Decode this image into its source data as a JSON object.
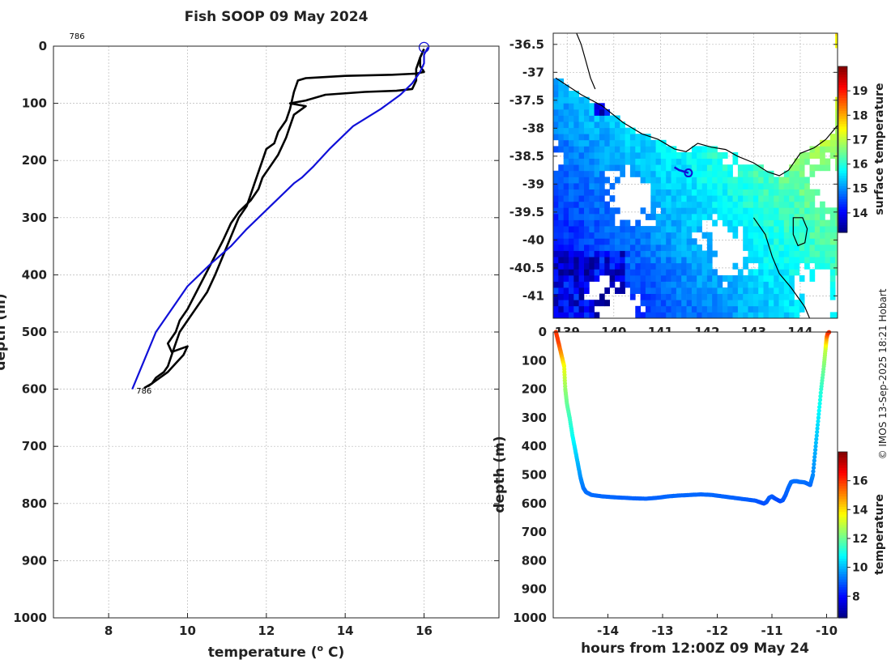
{
  "credit": "© IMOS 13-Sep-2025 18:21 Hobart",
  "colors": {
    "cast": "#000000",
    "climatology": "#1010d8",
    "land": "#000000"
  },
  "chart_data": [
    {
      "id": "profile",
      "type": "line",
      "title": "Fish SOOP 09 May 2024",
      "xlabel": "temperature (",
      "xlabel_sup": "o",
      "xlabel_end": " C)",
      "ylabel": "depth (m)",
      "xlim": [
        6.6,
        17.9
      ],
      "ylim": [
        0,
        1000
      ],
      "xticks": [
        8,
        10,
        12,
        14,
        16
      ],
      "yticks": [
        0,
        100,
        200,
        300,
        400,
        500,
        600,
        700,
        800,
        900,
        1000
      ],
      "annotations": [
        {
          "text": "786",
          "x": 7.0,
          "y": -20
        },
        {
          "text": "786",
          "x": 8.7,
          "y": 602
        }
      ],
      "start_marker": {
        "x": 16.0,
        "y": 2
      },
      "series": [
        {
          "name": "cast-down",
          "color": "#000000",
          "x": [
            16.0,
            15.9,
            15.9,
            16.0,
            15.8,
            15.2,
            14.0,
            13.0,
            12.8,
            12.7,
            12.6,
            12.5,
            12.3,
            12.2,
            12.0,
            11.9,
            11.8,
            11.7,
            11.6,
            11.5,
            11.3,
            11.0,
            10.7,
            10.5,
            10.2,
            10.0,
            9.8,
            9.7,
            9.6,
            9.5,
            9.4,
            9.3,
            9.2,
            9.1,
            9.0
          ],
          "y": [
            5,
            20,
            35,
            45,
            48,
            50,
            52,
            56,
            60,
            80,
            110,
            130,
            150,
            170,
            180,
            200,
            220,
            240,
            260,
            280,
            300,
            350,
            400,
            430,
            460,
            480,
            500,
            520,
            540,
            560,
            570,
            575,
            580,
            590,
            595
          ]
        },
        {
          "name": "cast-up",
          "color": "#000000",
          "x": [
            8.9,
            9.1,
            9.3,
            9.5,
            9.7,
            9.9,
            10.0,
            9.6,
            9.5,
            9.7,
            9.8,
            10.0,
            10.3,
            10.6,
            10.9,
            11.1,
            11.3,
            11.6,
            11.8,
            11.9,
            12.1,
            12.3,
            12.4,
            12.5,
            12.6,
            12.7,
            12.9,
            13.0,
            12.6,
            13.0,
            13.5,
            14.5,
            15.3,
            15.7,
            15.8,
            15.8,
            15.9,
            16.0
          ],
          "y": [
            598,
            590,
            580,
            570,
            555,
            540,
            525,
            535,
            520,
            500,
            480,
            460,
            420,
            380,
            340,
            310,
            290,
            270,
            250,
            230,
            210,
            190,
            175,
            160,
            140,
            120,
            110,
            105,
            100,
            95,
            85,
            80,
            78,
            75,
            60,
            40,
            20,
            5
          ]
        },
        {
          "name": "climatology",
          "color": "#1010d8",
          "x": [
            8.6,
            8.9,
            9.2,
            9.6,
            10.0,
            10.6,
            11.1,
            11.5,
            11.8,
            12.1,
            12.4,
            12.7,
            12.9,
            13.2,
            13.6,
            14.2,
            14.9,
            15.4,
            15.7,
            15.9,
            16.0,
            16.0,
            16.1
          ],
          "y": [
            600,
            550,
            500,
            460,
            420,
            380,
            350,
            320,
            300,
            280,
            260,
            240,
            230,
            210,
            180,
            140,
            110,
            85,
            65,
            45,
            30,
            15,
            2
          ]
        }
      ]
    },
    {
      "id": "sst-map",
      "type": "heatmap",
      "xlim": [
        138.7,
        144.8
      ],
      "ylim": [
        -41.4,
        -36.3
      ],
      "xticks": [
        139,
        140,
        141,
        142,
        143,
        144
      ],
      "yticks": [
        -36.5,
        -37,
        -37.5,
        -38,
        -38.5,
        -39,
        -39.5,
        -40,
        -40.5,
        -41
      ],
      "colorbar_label": "surface temperature",
      "colorbar_range": [
        13.2,
        20.0
      ],
      "colorbar_ticks": [
        14,
        15,
        16,
        17,
        18,
        19
      ],
      "track": {
        "lon": [
          141.3,
          141.4,
          141.6
        ],
        "lat": [
          -38.7,
          -38.75,
          -38.8
        ]
      }
    },
    {
      "id": "depth-time",
      "type": "scatter",
      "xlabel": "hours from 12:00Z 09 May 24",
      "ylabel": "depth (m)",
      "xlim": [
        -15.0,
        -9.8
      ],
      "ylim": [
        0,
        1000
      ],
      "xticks": [
        -14,
        -13,
        -12,
        -11,
        -10
      ],
      "yticks": [
        0,
        100,
        200,
        300,
        400,
        500,
        600,
        700,
        800,
        900,
        1000
      ],
      "colorbar_label": "temperature",
      "colorbar_range": [
        6.5,
        18.0
      ],
      "colorbar_ticks": [
        8,
        10,
        12,
        14,
        16
      ],
      "path": {
        "t": [
          -14.95,
          -14.9,
          -14.85,
          -14.8,
          -14.78,
          -14.75,
          -14.7,
          -14.65,
          -14.6,
          -14.55,
          -14.5,
          -14.45,
          -14.4,
          -14.3,
          -14.1,
          -13.9,
          -13.7,
          -13.5,
          -13.3,
          -13.1,
          -12.9,
          -12.7,
          -12.5,
          -12.3,
          -12.1,
          -11.9,
          -11.7,
          -11.5,
          -11.3,
          -11.15,
          -11.1,
          -11.05,
          -11.0,
          -10.95,
          -10.85,
          -10.8,
          -10.75,
          -10.7,
          -10.65,
          -10.6,
          -10.55,
          -10.5,
          -10.4,
          -10.3,
          -10.25,
          -10.2,
          -10.15,
          -10.1,
          -10.05,
          -10.02,
          -10.0,
          -9.98,
          -9.95
        ],
        "depth": [
          0,
          40,
          80,
          120,
          200,
          250,
          300,
          360,
          410,
          460,
          510,
          545,
          560,
          570,
          575,
          578,
          580,
          582,
          583,
          580,
          575,
          572,
          570,
          568,
          570,
          575,
          580,
          585,
          590,
          600,
          595,
          580,
          575,
          582,
          592,
          588,
          570,
          545,
          525,
          522,
          522,
          524,
          526,
          535,
          500,
          400,
          300,
          200,
          120,
          60,
          20,
          5,
          0
        ],
        "temp": [
          16.0,
          15.8,
          14.8,
          13.6,
          12.5,
          12.0,
          11.5,
          11.0,
          10.5,
          10.0,
          9.6,
          9.3,
          9.2,
          9.15,
          9.1,
          9.1,
          9.05,
          9.05,
          9.05,
          9.05,
          9.1,
          9.1,
          9.1,
          9.1,
          9.1,
          9.05,
          9.05,
          9.0,
          8.95,
          8.8,
          8.9,
          9.0,
          9.0,
          8.9,
          8.7,
          8.9,
          9.0,
          9.1,
          9.2,
          9.2,
          9.2,
          9.2,
          9.2,
          9.1,
          9.5,
          10.0,
          10.6,
          11.3,
          12.2,
          13.0,
          14.8,
          15.8,
          16.1
        ]
      }
    }
  ]
}
